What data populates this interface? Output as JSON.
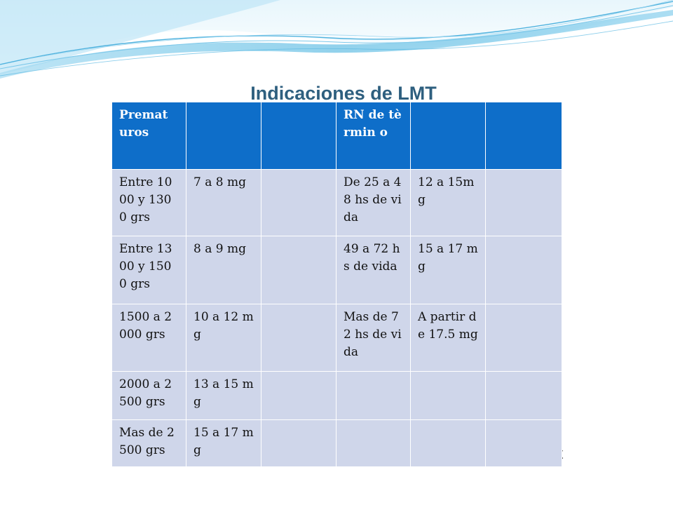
{
  "title": "Indicaciones de LMT",
  "stray_text": "t",
  "table": {
    "header": [
      "Premat uros",
      "",
      "",
      "RN de tèrmin o",
      "",
      ""
    ],
    "rows": [
      [
        "Entre 1000 y 1300 grs",
        "7 a 8 mg",
        "",
        "De 25 a 48 hs de vida",
        "12 a 15mg",
        ""
      ],
      [
        "Entre 1300 y 1500 grs",
        "8 a 9 mg",
        "",
        "49 a 72 hs de vida",
        "15 a 17 mg",
        ""
      ],
      [
        "1500 a 2000 grs",
        "10 a 12 mg",
        "",
        "Mas de 72 hs de vida",
        "A partir de 17.5 mg",
        ""
      ],
      [
        "2000 a 2500 grs",
        "13 a 15 mg",
        "",
        "",
        "",
        ""
      ],
      [
        "Mas de 2500 grs",
        "15 a 17 mg",
        "",
        "",
        "",
        ""
      ]
    ]
  },
  "colors": {
    "header_bg": "#0e6ec9",
    "row_bg": "#cfd6ea",
    "title_color": "#2e5f7f",
    "wave_color": "#6ec3e6"
  }
}
